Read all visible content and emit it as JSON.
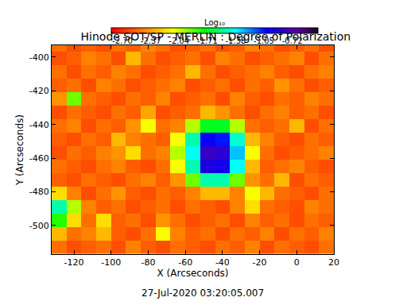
{
  "chart_data": {
    "type": "heatmap",
    "title": "Hinode SOT/SP - MERLIN : Degree of Polarization",
    "xlabel": "X (Arcseconds)",
    "ylabel": "Y (Arcseconds)",
    "annotations": [
      "27-Jul-2020 03:20:05.007"
    ],
    "x": [
      -128,
      -120,
      -112,
      -104,
      -96,
      -88,
      -80,
      -72,
      -64,
      -56,
      -48,
      -40,
      -32,
      -24,
      -16,
      -8,
      0,
      8,
      16
    ],
    "y": [
      -513,
      -505,
      -497,
      -489,
      -481,
      -473,
      -465,
      -457,
      -449,
      -441,
      -433,
      -425,
      -417,
      -409,
      -401,
      -393
    ],
    "xlim": [
      -132,
      20
    ],
    "ylim": [
      -517,
      -393
    ],
    "xticks": [
      -120,
      -100,
      -80,
      -60,
      -40,
      -20,
      0,
      20
    ],
    "yticks": [
      -500,
      -480,
      -460,
      -440,
      -420,
      -400
    ],
    "cells": [
      [
        -2.5,
        -2.6,
        -2.55,
        -2.5,
        -2.6,
        -2.45,
        -2.55,
        -2.6,
        -2.5,
        -2.55,
        -2.6,
        -2.5,
        -2.55,
        -2.45,
        -2.6,
        -2.5,
        -2.55,
        -2.6,
        -2.5
      ],
      [
        -2.3,
        -2.5,
        -2.45,
        -2.3,
        -2.55,
        -2.6,
        -2.5,
        -2.1,
        -2.45,
        -2.55,
        -2.5,
        -2.6,
        -2.5,
        -2.55,
        -2.45,
        -2.6,
        -2.5,
        -2.55,
        -2.45
      ],
      [
        -1.8,
        -2.2,
        -2.5,
        -2.2,
        -2.55,
        -2.5,
        -2.6,
        -2.4,
        -2.5,
        -2.6,
        -2.55,
        -2.5,
        -2.6,
        -2.45,
        -2.55,
        -2.5,
        -2.6,
        -2.5,
        -2.55
      ],
      [
        -1.5,
        -2.0,
        -2.45,
        -2.55,
        -2.5,
        -2.6,
        -2.55,
        -2.5,
        -2.6,
        -2.5,
        -2.55,
        -2.6,
        -2.45,
        -2.2,
        -2.5,
        -2.55,
        -2.6,
        -2.45,
        -2.5
      ],
      [
        -2.2,
        -2.45,
        -2.6,
        -2.5,
        -2.4,
        -2.55,
        -2.6,
        -2.5,
        -2.55,
        -2.45,
        -2.3,
        -2.3,
        -2.45,
        -2.1,
        -2.3,
        -2.5,
        -2.55,
        -2.6,
        -2.5
      ],
      [
        -2.55,
        -2.6,
        -2.5,
        -2.55,
        -2.6,
        -2.5,
        -2.45,
        -2.55,
        -2.4,
        -1.9,
        -1.5,
        -1.5,
        -1.9,
        -2.4,
        -2.5,
        -2.3,
        -2.6,
        -2.5,
        -2.55
      ],
      [
        -2.5,
        -2.55,
        -2.6,
        -2.5,
        -2.45,
        -2.55,
        -2.6,
        -2.5,
        -2.1,
        -1.5,
        -0.9,
        -0.95,
        -1.4,
        -2.3,
        -2.55,
        -2.5,
        -2.45,
        -2.55,
        -2.6
      ],
      [
        -2.6,
        -2.5,
        -2.55,
        -2.45,
        -2.4,
        -2.2,
        -2.5,
        -2.45,
        -2.0,
        -1.4,
        -0.8,
        -0.85,
        -1.3,
        -2.1,
        -2.5,
        -2.6,
        -2.55,
        -2.5,
        -2.45
      ],
      [
        -2.55,
        -2.6,
        -2.5,
        -2.55,
        -2.3,
        -2.45,
        -2.5,
        -2.55,
        -2.1,
        -1.5,
        -1.0,
        -1.05,
        -1.45,
        -2.3,
        -2.45,
        -2.55,
        -2.6,
        -2.5,
        -2.55
      ],
      [
        -2.5,
        -2.45,
        -2.6,
        -2.5,
        -2.55,
        -2.4,
        -2.1,
        -2.5,
        -2.45,
        -2.0,
        -1.7,
        -1.7,
        -2.0,
        -2.5,
        -2.55,
        -2.5,
        -2.3,
        -2.6,
        -2.5
      ],
      [
        -2.6,
        -2.5,
        -2.55,
        -2.6,
        -2.5,
        -2.55,
        -2.35,
        -2.6,
        -2.55,
        -2.5,
        -2.3,
        -2.4,
        -2.5,
        -2.6,
        -2.5,
        -2.45,
        -2.55,
        -2.5,
        -2.6
      ],
      [
        -2.4,
        -1.9,
        -2.5,
        -2.55,
        -2.6,
        -2.5,
        -2.55,
        -2.45,
        -2.6,
        -2.55,
        -2.5,
        -2.6,
        -2.45,
        -2.55,
        -2.6,
        -2.5,
        -2.55,
        -2.45,
        -2.5
      ],
      [
        -2.55,
        -2.5,
        -2.6,
        -2.45,
        -2.5,
        -2.6,
        -2.55,
        -2.5,
        -2.45,
        -2.6,
        -2.55,
        -2.5,
        -2.6,
        -2.5,
        -2.55,
        -2.4,
        -2.5,
        -2.6,
        -2.55
      ],
      [
        -2.5,
        -2.6,
        -2.5,
        -2.55,
        -2.45,
        -2.5,
        -2.6,
        -2.55,
        -2.5,
        -2.3,
        -2.5,
        -2.6,
        -2.55,
        -2.5,
        -2.45,
        -2.55,
        -2.6,
        -2.5,
        -2.45
      ],
      [
        -2.6,
        -2.55,
        -2.45,
        -2.5,
        -2.6,
        -2.3,
        -2.5,
        -2.6,
        -2.55,
        -2.5,
        -2.6,
        -2.45,
        -2.5,
        -2.6,
        -2.55,
        -2.5,
        -2.45,
        -2.6,
        -2.5
      ],
      [
        -2.5,
        -2.6,
        -2.55,
        -2.6,
        -2.5,
        -2.55,
        -2.45,
        -2.5,
        -2.6,
        -2.55,
        -2.5,
        -2.6,
        -2.55,
        -2.45,
        -2.5,
        -2.6,
        -2.55,
        -2.5,
        -2.6
      ]
    ],
    "colorbar": {
      "title": "Log₁₀",
      "range": [
        -2.83,
        -0.42
      ],
      "ticks": [
        {
          "value": -2.7,
          "label": "-2.70"
        },
        {
          "value": -2.37,
          "label": "-2.37"
        },
        {
          "value": -2.04,
          "label": "-2.04"
        },
        {
          "value": -1.71,
          "label": "-1.71"
        },
        {
          "value": -1.38,
          "label": "-1.38"
        },
        {
          "value": -1.05,
          "label": "-1.05"
        },
        {
          "value": -0.72,
          "label": "-0.72"
        }
      ]
    },
    "grid": false
  }
}
